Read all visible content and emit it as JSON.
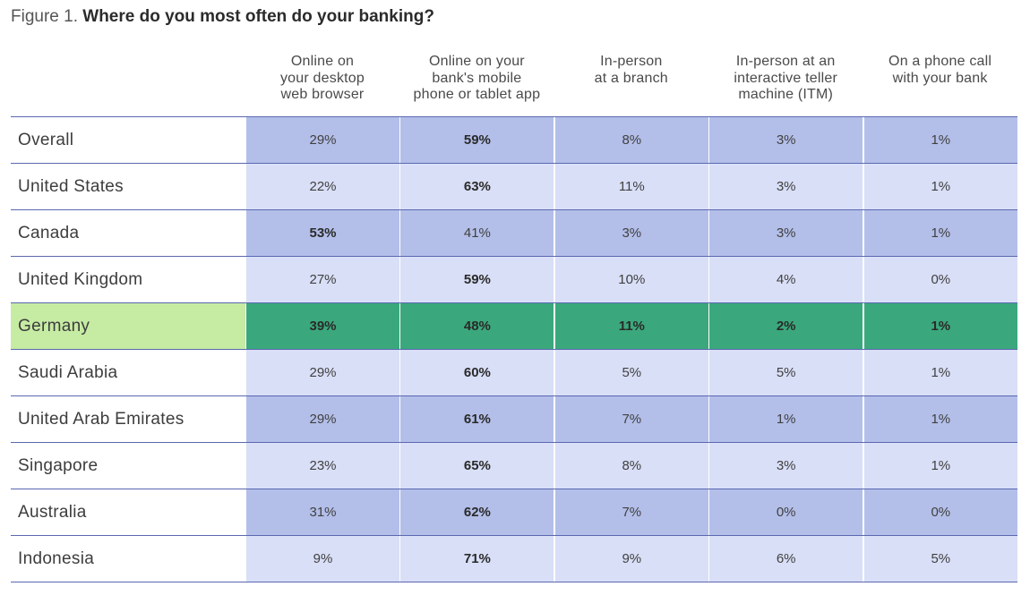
{
  "figure": {
    "prefix": "Figure 1.",
    "title": "Where do you most often do your banking?"
  },
  "colors": {
    "row_dark": "#b3bfe9",
    "row_light": "#d9dff7",
    "highlight_cells": "#3aa87c",
    "highlight_label": "#c6eba3",
    "grid_line": "#5b68b0"
  },
  "chart_data": {
    "type": "table",
    "title": "Where do you most often do your banking?",
    "columns": [
      "Online on your desktop web browser",
      "Online on your bank's mobile phone or tablet app",
      "In-person at a branch",
      "In-person at an interactive teller machine (ITM)",
      "On a phone call with your bank"
    ],
    "column_lines": [
      [
        "Online on",
        "your desktop",
        "web browser"
      ],
      [
        "Online on your",
        "bank's mobile",
        "phone or tablet app"
      ],
      [
        "In-person",
        "at a branch"
      ],
      [
        "In-person at an",
        "interactive teller",
        "machine (ITM)"
      ],
      [
        "On a phone call",
        "with your bank"
      ]
    ],
    "rows": [
      {
        "label": "Overall",
        "values": [
          "29%",
          "59%",
          "8%",
          "3%",
          "1%"
        ],
        "bold": [
          1
        ],
        "shade": "dark"
      },
      {
        "label": "United States",
        "values": [
          "22%",
          "63%",
          "11%",
          "3%",
          "1%"
        ],
        "bold": [
          1
        ],
        "shade": "light"
      },
      {
        "label": "Canada",
        "values": [
          "53%",
          "41%",
          "3%",
          "3%",
          "1%"
        ],
        "bold": [
          0
        ],
        "shade": "dark"
      },
      {
        "label": "United Kingdom",
        "values": [
          "27%",
          "59%",
          "10%",
          "4%",
          "0%"
        ],
        "bold": [
          1
        ],
        "shade": "light"
      },
      {
        "label": "Germany",
        "values": [
          "39%",
          "48%",
          "11%",
          "2%",
          "1%"
        ],
        "bold": [
          0,
          1,
          2,
          3,
          4
        ],
        "shade": "highlight"
      },
      {
        "label": "Saudi Arabia",
        "values": [
          "29%",
          "60%",
          "5%",
          "5%",
          "1%"
        ],
        "bold": [
          1
        ],
        "shade": "light"
      },
      {
        "label": "United Arab Emirates",
        "values": [
          "29%",
          "61%",
          "7%",
          "1%",
          "1%"
        ],
        "bold": [
          1
        ],
        "shade": "dark"
      },
      {
        "label": "Singapore",
        "values": [
          "23%",
          "65%",
          "8%",
          "3%",
          "1%"
        ],
        "bold": [
          1
        ],
        "shade": "light"
      },
      {
        "label": "Australia",
        "values": [
          "31%",
          "62%",
          "7%",
          "0%",
          "0%"
        ],
        "bold": [
          1
        ],
        "shade": "dark"
      },
      {
        "label": "Indonesia",
        "values": [
          "9%",
          "71%",
          "9%",
          "6%",
          "5%"
        ],
        "bold": [
          1
        ],
        "shade": "light"
      }
    ]
  }
}
